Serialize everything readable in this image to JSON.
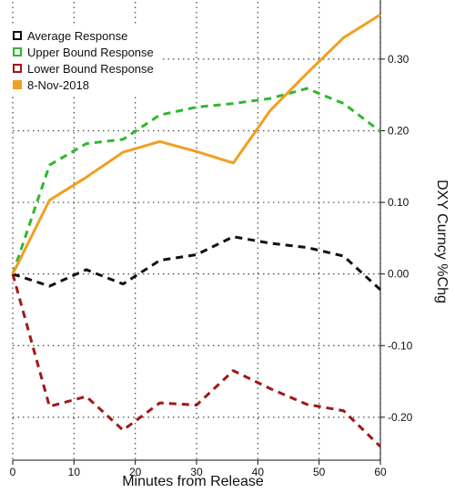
{
  "chart_data": {
    "type": "line",
    "title": "",
    "xlabel": "Minutes from Release",
    "ylabel": "DXY Curncy %Chg",
    "xlim": [
      0,
      60
    ],
    "ylim": [
      -0.26,
      0.38
    ],
    "x_ticks": [
      0,
      10,
      20,
      30,
      40,
      50,
      60
    ],
    "y_ticks": [
      -0.2,
      -0.1,
      0.0,
      0.1,
      0.2,
      0.3
    ],
    "y_tick_labels": [
      "-0.20",
      "-0.10",
      "0.00",
      "0.10",
      "0.20",
      "0.30"
    ],
    "x": [
      0,
      6,
      12,
      18,
      24,
      30,
      36,
      42,
      48,
      54,
      60
    ],
    "grid": true,
    "legend_position": "top-left",
    "series": [
      {
        "name": "Average Response",
        "style": "dashed",
        "color": "#111111",
        "values": [
          0.0,
          -0.017,
          0.006,
          -0.014,
          0.019,
          0.027,
          0.052,
          0.043,
          0.037,
          0.025,
          -0.022
        ]
      },
      {
        "name": "Upper Bound Response",
        "style": "dashed",
        "color": "#2eb82e",
        "values": [
          0.0,
          0.152,
          0.182,
          0.188,
          0.222,
          0.233,
          0.238,
          0.245,
          0.259,
          0.238,
          0.199
        ]
      },
      {
        "name": "Lower Bound Response",
        "style": "dashed",
        "color": "#a01818",
        "values": [
          0.0,
          -0.185,
          -0.171,
          -0.218,
          -0.18,
          -0.183,
          -0.135,
          -0.16,
          -0.182,
          -0.191,
          -0.241
        ]
      },
      {
        "name": "8-Nov-2018",
        "style": "solid",
        "color": "#f0a020",
        "values": [
          0.0,
          0.103,
          0.135,
          0.17,
          0.185,
          0.171,
          0.155,
          0.228,
          0.28,
          0.33,
          0.362
        ]
      }
    ]
  }
}
